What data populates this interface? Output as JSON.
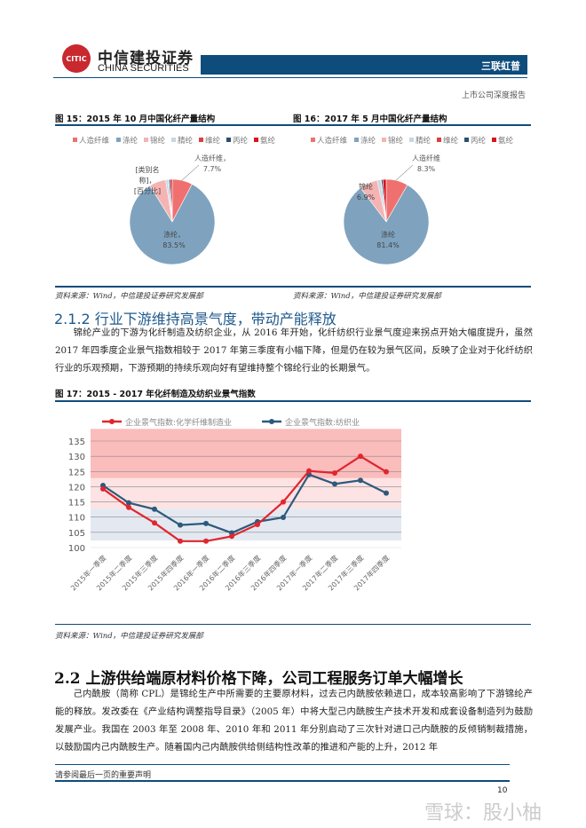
{
  "header": {
    "logo_cn": "中信建投证券",
    "logo_en": "CHINA SECURITIES",
    "logo_mark": "CITIC",
    "company": "三联虹普",
    "report_type": "上市公司深度报告"
  },
  "colors": {
    "brand": "#0e4c7c",
    "red": "#e0262e",
    "blue": "#2d5a7c"
  },
  "source_text": "资料来源：Wind，中信建投证券研究发展部",
  "chart_data": [
    {
      "type": "pie",
      "title": "图 15：2015 年 10 月中国化纤产量结构",
      "labels": [
        "人造纤维",
        "涤纶",
        "锦纶",
        "腈纶",
        "维纶",
        "丙纶",
        "氨纶"
      ],
      "values": [
        7.7,
        83.5,
        6.3,
        1.0,
        0.2,
        0.6,
        0.7
      ],
      "colors": [
        "#f07070",
        "#7fa3bf",
        "#f6b3b3",
        "#c9d6e0",
        "#d9403e",
        "#2b4e6e",
        "#d8141c"
      ],
      "data_labels": [
        {
          "text": "人造纤维，",
          "text2": "7.7%"
        },
        {
          "text": "涤纶，",
          "text2": "83.5%"
        },
        {
          "text": "[类别名",
          "text2": "称]，",
          "text3": "[百分比]"
        }
      ]
    },
    {
      "type": "pie",
      "title": "图 16：2017 年 5 月中国化纤产量结构",
      "labels": [
        "人造纤维",
        "涤纶",
        "锦纶",
        "腈纶",
        "维纶",
        "丙纶",
        "氨纶"
      ],
      "values": [
        8.3,
        81.4,
        6.9,
        1.3,
        0.2,
        0.6,
        1.3
      ],
      "colors": [
        "#f07070",
        "#7fa3bf",
        "#f6b3b3",
        "#c9d6e0",
        "#d9403e",
        "#2b4e6e",
        "#d8141c"
      ],
      "data_labels": [
        {
          "text": "人造纤维",
          "text2": "8.3%"
        },
        {
          "text": "涤纶",
          "text2": "81.4%"
        },
        {
          "text": "锦纶",
          "text2": "6.9%"
        }
      ]
    },
    {
      "type": "line",
      "title": "图 17：2015 - 2017 年化纤制造及纺织业景气指数",
      "categories": [
        "2015年一季度",
        "2015年二季度",
        "2015年三季度",
        "2015年四季度",
        "2016年一季度",
        "2016年二季度",
        "2016年三季度",
        "2016年四季度",
        "2017年一季度",
        "2017年二季度",
        "2017年三季度",
        "2017年四季度"
      ],
      "series": [
        {
          "name": "企业景气指数:化学纤维制造业",
          "color": "#e0262e",
          "values": [
            119.3,
            113.2,
            108.1,
            102.1,
            102.1,
            103.7,
            107.6,
            115.0,
            125.2,
            124.5,
            130.0,
            124.9
          ]
        },
        {
          "name": "企业景气指数:纺织业",
          "color": "#2d5a7c",
          "values": [
            120.4,
            114.7,
            112.6,
            107.4,
            107.9,
            104.8,
            108.5,
            109.9,
            124.0,
            120.9,
            122.1,
            117.9
          ]
        }
      ],
      "yticks": [
        100,
        105,
        110,
        115,
        120,
        125,
        130,
        135
      ],
      "ylim": [
        100,
        135
      ],
      "bands": [
        {
          "from": 122.8,
          "to": 139,
          "color": "#fbbcbc"
        },
        {
          "from": 112.8,
          "to": 122.8,
          "color": "#fde3e3"
        },
        {
          "from": 102.3,
          "to": 112.8,
          "color": "#e4e9f1"
        }
      ],
      "legend": "top"
    }
  ],
  "section_212": {
    "heading": "2.1.2 行业下游维持高景气度，带动产能释放",
    "body": "锦纶产业的下游为化纤制造及纺织企业，从 2016 年开始，化纤纺织行业景气度迎来拐点开始大幅度提升，虽然 2017 年四季度企业景气指数相较于 2017 年第三季度有小幅下降，但是仍在较为景气区间，反映了企业对于化纤纺织行业的乐观预期，下游预期的持续乐观向好有望维持整个锦纶行业的长期景气。"
  },
  "section_22": {
    "heading": "2.2  上游供给端原材料价格下降，公司工程服务订单大幅增长",
    "body": "己内酰胺（简称 CPL）是锦纶生产中所需要的主要原材料，过去己内酰胺依赖进口，成本较高影响了下游锦纶产能的释放。发改委在《产业结构调整指导目录》（2005 年）中将大型己内酰胺生产技术开发和成套设备制造列为鼓励发展产业。我国在 2003 年至 2008 年、2010 年和 2011 年分别启动了三次针对进口己内酰胺的反倾销制裁措施，以鼓励国内己内酰胺生产。随着国内己内酰胺供给侧结构性改革的推进和产能的上升，2012 年"
  },
  "footer": {
    "disclaimer": "请参阅最后一页的重要声明",
    "page": "10",
    "watermark": "雪球：股小柚"
  }
}
